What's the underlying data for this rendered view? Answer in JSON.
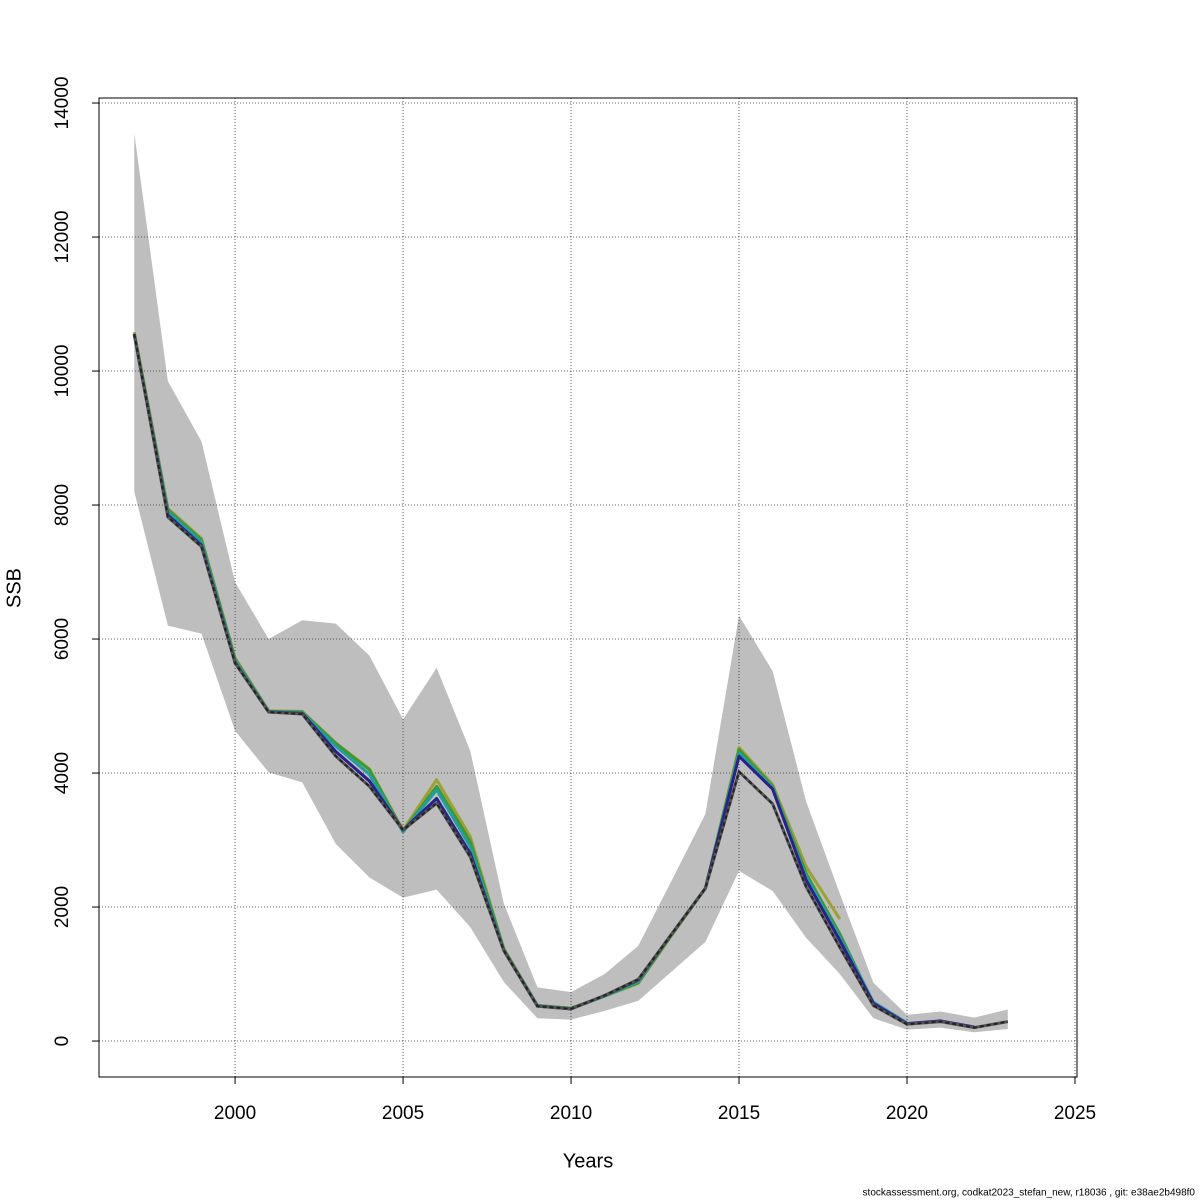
{
  "chart_data": {
    "type": "line",
    "x_label": "Years",
    "y_label": "SSB",
    "footnote": "stockassessment.org, codkat2023_stefan_new, r18036 , git: e38ae2b498f0",
    "x": [
      1997,
      1998,
      1999,
      2000,
      2001,
      2002,
      2003,
      2004,
      2005,
      2006,
      2007,
      2008,
      2009,
      2010,
      2011,
      2012,
      2013,
      2014,
      2015,
      2016,
      2017,
      2018,
      2019,
      2020,
      2021,
      2022,
      2023
    ],
    "band": {
      "color": "#bebebe",
      "upper": [
        13550,
        9850,
        8950,
        6850,
        6000,
        6280,
        6230,
        5750,
        4800,
        5570,
        4330,
        2050,
        800,
        730,
        1000,
        1420,
        2400,
        3390,
        6350,
        5520,
        3570,
        2200,
        870,
        390,
        440,
        350,
        470
      ],
      "lower": [
        8200,
        6200,
        6080,
        4630,
        4010,
        3860,
        2940,
        2440,
        2140,
        2260,
        1700,
        880,
        340,
        320,
        450,
        600,
        1040,
        1480,
        2540,
        2240,
        1540,
        1000,
        340,
        170,
        200,
        130,
        180
      ]
    },
    "series": [
      {
        "color": "#a0a030",
        "values": [
          10580,
          7950,
          7500,
          5720,
          4930,
          4920,
          4450,
          4060,
          3150,
          3900,
          3050,
          1380,
          530,
          490,
          670,
          860,
          1580,
          2280,
          4380,
          3830,
          2600,
          1820,
          null,
          null,
          null,
          null,
          null
        ]
      },
      {
        "color": "#3a9a2a",
        "values": [
          10560,
          7930,
          7480,
          5700,
          4920,
          4910,
          4440,
          4050,
          3130,
          3800,
          2980,
          1370,
          530,
          490,
          670,
          870,
          1590,
          2280,
          4350,
          3800,
          2500,
          1600,
          560,
          null,
          null,
          null,
          null
        ]
      },
      {
        "color": "#1fa0a0",
        "values": [
          10550,
          7900,
          7450,
          5680,
          4920,
          4900,
          4400,
          3980,
          3120,
          3750,
          2900,
          1360,
          530,
          480,
          670,
          890,
          1600,
          2280,
          4300,
          3780,
          2450,
          1550,
          580,
          270,
          null,
          null,
          null
        ]
      },
      {
        "color": "#2a1f8f",
        "values": [
          10540,
          7850,
          7400,
          5650,
          4910,
          4890,
          4320,
          3880,
          3150,
          3620,
          2800,
          1350,
          520,
          480,
          680,
          910,
          1600,
          2280,
          4250,
          3760,
          2400,
          1500,
          560,
          260,
          300,
          210,
          null
        ]
      },
      {
        "color": "#222222",
        "dashed": true,
        "values": [
          10550,
          7820,
          7380,
          5640,
          4910,
          4880,
          4250,
          3800,
          3150,
          3550,
          2750,
          1350,
          520,
          480,
          680,
          920,
          1600,
          2280,
          4020,
          3540,
          2300,
          1400,
          530,
          250,
          290,
          200,
          290
        ]
      }
    ],
    "xlim": [
      1995.95,
      2025.06
    ],
    "ylim": [
      -537,
      14075
    ],
    "xticks": [
      2000,
      2005,
      2010,
      2015,
      2020,
      2025
    ],
    "yticks": [
      0,
      2000,
      4000,
      6000,
      8000,
      10000,
      12000,
      14000
    ],
    "grid": true
  }
}
